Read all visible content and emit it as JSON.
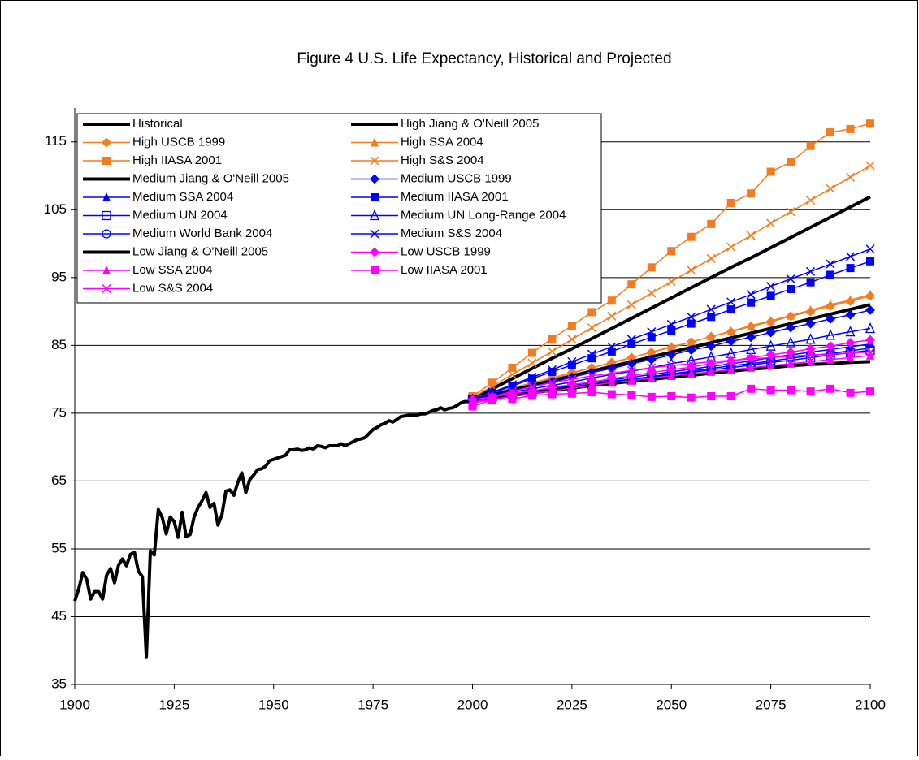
{
  "chart_data": {
    "type": "line",
    "title": "Figure 4 U.S. Life Expectancy, Historical and Projected",
    "xlim": [
      1900,
      2100
    ],
    "xticks": [
      1900,
      1925,
      1950,
      1975,
      2000,
      2025,
      2050,
      2075,
      2100
    ],
    "ylim": [
      35,
      120
    ],
    "yticks": [
      35,
      45,
      55,
      65,
      75,
      85,
      95,
      105,
      115
    ],
    "grid": true,
    "x": [
      2000,
      2005,
      2010,
      2015,
      2020,
      2025,
      2030,
      2035,
      2040,
      2045,
      2050,
      2055,
      2060,
      2065,
      2070,
      2075,
      2080,
      2085,
      2090,
      2095,
      2100
    ],
    "series": [
      {
        "name": "Historical",
        "color": "#000000",
        "marker": "none",
        "line_width": 4,
        "x": [
          1900,
          1901,
          1902,
          1903,
          1904,
          1905,
          1906,
          1907,
          1908,
          1909,
          1910,
          1911,
          1912,
          1913,
          1914,
          1915,
          1916,
          1917,
          1918,
          1919,
          1920,
          1921,
          1922,
          1923,
          1924,
          1925,
          1926,
          1927,
          1928,
          1929,
          1930,
          1931,
          1932,
          1933,
          1934,
          1935,
          1936,
          1937,
          1938,
          1939,
          1940,
          1941,
          1942,
          1943,
          1944,
          1945,
          1946,
          1947,
          1948,
          1949,
          1950,
          1951,
          1952,
          1953,
          1954,
          1955,
          1956,
          1957,
          1958,
          1959,
          1960,
          1961,
          1962,
          1963,
          1964,
          1965,
          1966,
          1967,
          1968,
          1969,
          1970,
          1971,
          1972,
          1973,
          1974,
          1975,
          1976,
          1977,
          1978,
          1979,
          1980,
          1981,
          1982,
          1983,
          1984,
          1985,
          1986,
          1987,
          1988,
          1989,
          1990,
          1991,
          1992,
          1993,
          1994,
          1995,
          1996,
          1997,
          1998,
          1999,
          2000,
          2001,
          2002
        ],
        "values": [
          47.3,
          49.1,
          51.5,
          50.5,
          47.6,
          48.7,
          48.7,
          47.6,
          51.1,
          52.1,
          50.0,
          52.6,
          53.5,
          52.5,
          54.2,
          54.5,
          51.7,
          50.9,
          39.1,
          54.7,
          54.1,
          60.8,
          59.6,
          57.2,
          59.7,
          59.0,
          56.7,
          60.4,
          56.8,
          57.1,
          59.7,
          61.1,
          62.1,
          63.3,
          61.1,
          61.7,
          58.5,
          60.0,
          63.5,
          63.7,
          62.9,
          64.8,
          66.2,
          63.3,
          65.2,
          65.9,
          66.7,
          66.8,
          67.2,
          68.0,
          68.2,
          68.4,
          68.6,
          68.8,
          69.6,
          69.6,
          69.7,
          69.5,
          69.6,
          69.9,
          69.7,
          70.2,
          70.1,
          69.9,
          70.2,
          70.2,
          70.2,
          70.5,
          70.2,
          70.5,
          70.8,
          71.1,
          71.2,
          71.4,
          72.0,
          72.6,
          72.9,
          73.3,
          73.5,
          73.9,
          73.7,
          74.1,
          74.5,
          74.6,
          74.7,
          74.7,
          74.7,
          74.9,
          74.9,
          75.1,
          75.4,
          75.5,
          75.8,
          75.5,
          75.7,
          75.8,
          76.1,
          76.5,
          76.7,
          76.7,
          77.0,
          77.2,
          77.3
        ]
      },
      {
        "name": "High Jiang & O'Neill 2005",
        "color": "#000000",
        "marker": "none",
        "line_width": 4,
        "values": [
          77.1,
          78.6,
          80.1,
          81.6,
          83.1,
          84.5,
          86.0,
          87.5,
          89.0,
          90.5,
          92.0,
          93.5,
          95.0,
          96.5,
          97.9,
          99.4,
          100.9,
          102.4,
          103.9,
          105.4,
          106.9
        ]
      },
      {
        "name": "High USCB 1999",
        "color": "#f47b20",
        "marker": "diamond",
        "line_width": 1.5,
        "values": [
          77.2,
          78.0,
          78.7,
          79.5,
          80.2,
          81.0,
          81.7,
          82.5,
          83.2,
          84.0,
          84.7,
          85.5,
          86.3,
          87.0,
          87.8,
          88.5,
          89.3,
          90.0,
          90.8,
          91.5,
          92.3
        ]
      },
      {
        "name": "High SSA 2004",
        "color": "#f47b20",
        "marker": "triangle",
        "line_width": 1.5,
        "values": [
          77.0,
          77.8,
          78.6,
          79.3,
          80.1,
          80.9,
          81.7,
          82.4,
          83.2,
          84.0,
          84.8,
          85.5,
          86.3,
          87.1,
          87.9,
          88.6,
          89.4,
          90.2,
          91.0,
          91.7,
          92.5
        ]
      },
      {
        "name": "High IIASA 2001",
        "color": "#f47b20",
        "marker": "square",
        "line_width": 1.5,
        "values": [
          77.5,
          79.5,
          81.7,
          83.9,
          86.0,
          87.9,
          89.9,
          91.6,
          94.0,
          96.5,
          98.9,
          101.0,
          102.9,
          106.0,
          107.4,
          110.6,
          112.0,
          114.4,
          116.4,
          116.9,
          117.7
        ]
      },
      {
        "name": "High S&S 2004",
        "color": "#f47b20",
        "marker": "x",
        "line_width": 1.5,
        "values": [
          77.3,
          79.0,
          80.7,
          82.4,
          84.1,
          85.9,
          87.6,
          89.3,
          91.0,
          92.7,
          94.4,
          96.1,
          97.8,
          99.5,
          101.2,
          103.0,
          104.7,
          106.4,
          108.1,
          109.8,
          111.5
        ]
      },
      {
        "name": "Medium Jiang & O'Neill 2005",
        "color": "#000000",
        "marker": "none",
        "line_width": 4,
        "values": [
          77.0,
          77.7,
          78.4,
          79.1,
          79.8,
          80.5,
          81.2,
          81.9,
          82.6,
          83.3,
          84.0,
          84.7,
          85.4,
          86.1,
          86.8,
          87.5,
          88.2,
          88.9,
          89.6,
          90.3,
          91.0
        ]
      },
      {
        "name": "Medium USCB 1999",
        "color": "#0000ff",
        "marker": "diamond",
        "line_width": 1.5,
        "values": [
          77.0,
          77.7,
          78.3,
          79.0,
          79.6,
          80.3,
          81.0,
          81.6,
          82.3,
          82.9,
          83.6,
          84.3,
          84.9,
          85.6,
          86.2,
          86.9,
          87.6,
          88.2,
          88.9,
          89.5,
          90.2
        ]
      },
      {
        "name": "Medium SSA 2004",
        "color": "#0000ff",
        "marker": "triangle",
        "line_width": 1.5,
        "values": [
          77.0,
          77.4,
          77.8,
          78.2,
          78.6,
          79.1,
          79.5,
          79.9,
          80.3,
          80.7,
          81.1,
          81.5,
          81.9,
          82.3,
          82.7,
          83.2,
          83.6,
          84.0,
          84.4,
          84.8,
          85.2
        ]
      },
      {
        "name": "Medium IIASA 2001",
        "color": "#0000ff",
        "marker": "square",
        "line_width": 1.5,
        "values": [
          77.0,
          78.0,
          79.0,
          80.1,
          81.1,
          82.1,
          83.1,
          84.1,
          85.2,
          86.2,
          87.2,
          88.2,
          89.2,
          90.3,
          91.3,
          92.3,
          93.3,
          94.3,
          95.4,
          96.4,
          97.4
        ]
      },
      {
        "name": "Medium UN 2004",
        "color": "#0000ff",
        "marker": "square-open",
        "line_width": 1.5,
        "values": [
          77.0,
          77.4,
          77.7,
          78.1,
          78.5,
          78.8,
          79.2,
          79.6,
          79.9,
          80.3,
          80.7,
          81.0,
          81.4,
          81.7,
          82.1,
          82.5,
          82.8,
          83.2,
          83.6,
          83.9,
          84.3
        ]
      },
      {
        "name": "Medium UN Long-Range 2004",
        "color": "#0000ff",
        "marker": "triangle-open",
        "line_width": 1.5,
        "values": [
          77.0,
          77.5,
          78.1,
          78.6,
          79.1,
          79.6,
          80.2,
          80.7,
          81.2,
          81.7,
          82.3,
          82.8,
          83.3,
          83.8,
          84.4,
          84.9,
          85.4,
          85.9,
          86.5,
          87.0,
          87.5
        ]
      },
      {
        "name": "Medium World Bank 2004",
        "color": "#0000ff",
        "marker": "circle-open",
        "line_width": 1.5,
        "values": [
          77.0,
          77.4,
          77.8,
          78.1,
          78.5,
          78.9,
          79.3,
          79.7,
          80.0,
          80.4,
          80.8,
          81.2,
          81.6,
          82.0,
          82.3,
          82.7,
          83.1,
          83.5,
          83.8,
          84.2,
          84.6
        ]
      },
      {
        "name": "Medium S&S 2004",
        "color": "#0000ff",
        "marker": "x",
        "line_width": 1.5,
        "values": [
          77.0,
          78.1,
          79.2,
          80.3,
          81.4,
          82.6,
          83.7,
          84.8,
          85.9,
          87.0,
          88.1,
          89.2,
          90.3,
          91.4,
          92.5,
          93.7,
          94.8,
          95.9,
          97.0,
          98.1,
          99.2
        ]
      },
      {
        "name": "Low Jiang & O'Neill 2005",
        "color": "#000000",
        "marker": "none",
        "line_width": 4,
        "values": [
          76.8,
          77.2,
          77.6,
          78.0,
          78.4,
          78.7,
          79.1,
          79.4,
          79.7,
          80.0,
          80.3,
          80.6,
          80.9,
          81.2,
          81.5,
          81.7,
          82.0,
          82.2,
          82.3,
          82.5,
          82.6
        ]
      },
      {
        "name": "Low USCB 1999",
        "color": "#ff00ff",
        "marker": "diamond",
        "line_width": 1.5,
        "values": [
          77.0,
          77.4,
          77.9,
          78.3,
          78.8,
          79.2,
          79.6,
          80.1,
          80.5,
          81.0,
          81.4,
          81.8,
          82.3,
          82.7,
          83.2,
          83.6,
          84.0,
          84.5,
          84.9,
          85.4,
          85.8
        ]
      },
      {
        "name": "Low SSA 2004",
        "color": "#ff00ff",
        "marker": "triangle",
        "line_width": 1.5,
        "values": [
          76.5,
          77.0,
          77.5,
          77.9,
          78.3,
          78.7,
          79.1,
          79.5,
          79.8,
          80.2,
          80.5,
          80.8,
          81.1,
          81.4,
          81.7,
          82.0,
          82.3,
          82.6,
          82.9,
          83.2,
          83.5
        ]
      },
      {
        "name": "Low IIASA 2001",
        "color": "#ff00ff",
        "marker": "square",
        "line_width": 1.5,
        "values": [
          76.0,
          77.0,
          77.1,
          77.6,
          77.8,
          77.9,
          78.1,
          77.8,
          77.7,
          77.4,
          77.5,
          77.3,
          77.5,
          77.5,
          78.6,
          78.4,
          78.4,
          78.2,
          78.6,
          78.0,
          78.2
        ]
      },
      {
        "name": "Low S&S 2004",
        "color": "#ff00ff",
        "marker": "x",
        "line_width": 1.5,
        "values": [
          76.5,
          77.4,
          78.2,
          78.9,
          79.5,
          80.0,
          80.5,
          80.9,
          81.3,
          81.7,
          82.0,
          82.3,
          82.6,
          82.8,
          83.0,
          83.2,
          83.4,
          83.6,
          83.7,
          83.9,
          84.0
        ]
      }
    ]
  }
}
